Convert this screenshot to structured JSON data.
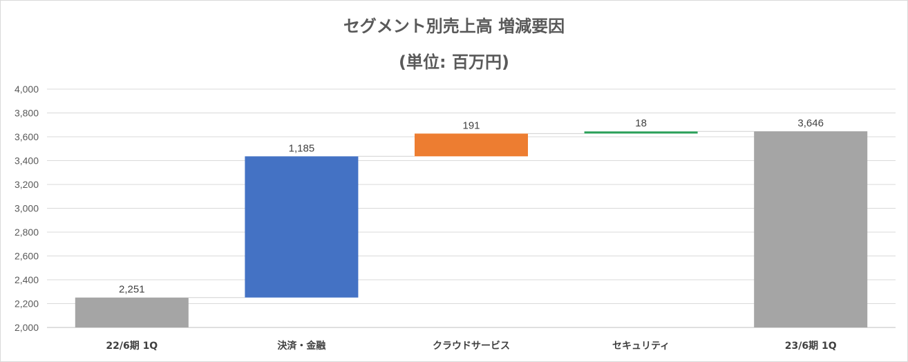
{
  "chart_data": {
    "type": "waterfall",
    "title": "セグメント別売上高 増減要因",
    "subtitle": "(単位: 百万円)",
    "categories": [
      "22/6期 1Q",
      "決済・金融",
      "クラウドサービス",
      "セキュリティ",
      "23/6期 1Q"
    ],
    "bars": [
      {
        "category": "22/6期 1Q",
        "kind": "total",
        "value": 2251,
        "label": "2,251",
        "color": "#a5a5a5"
      },
      {
        "category": "決済・金融",
        "kind": "increase",
        "value": 1185,
        "label": "1,185",
        "color": "#4472c4"
      },
      {
        "category": "クラウドサービス",
        "kind": "increase",
        "value": 191,
        "label": "191",
        "color": "#ed7d31"
      },
      {
        "category": "セキュリティ",
        "kind": "increase",
        "value": 18,
        "label": "18",
        "color": "#2ca05a"
      },
      {
        "category": "23/6期 1Q",
        "kind": "total",
        "value": 3646,
        "label": "3,646",
        "color": "#a5a5a5"
      }
    ],
    "ylim": [
      2000,
      4000
    ],
    "yticks": [
      "2,000",
      "2,200",
      "2,400",
      "2,600",
      "2,800",
      "3,000",
      "3,200",
      "3,400",
      "3,600",
      "3,800",
      "4,000"
    ],
    "grid": true,
    "connectors": true
  }
}
